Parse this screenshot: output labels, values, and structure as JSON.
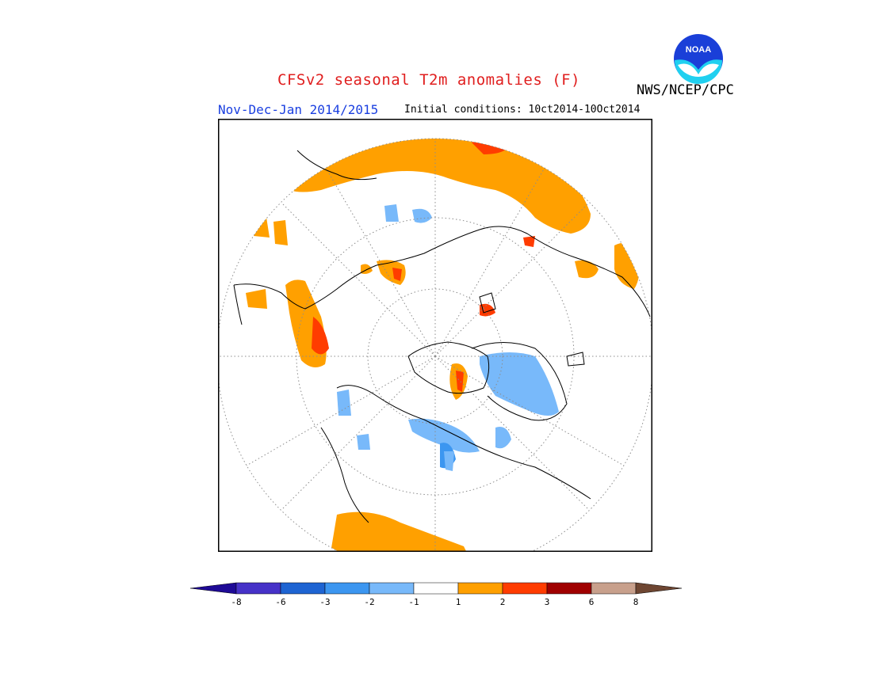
{
  "header": {
    "title": "CFSv2 seasonal T2m anomalies (F)",
    "title_color": "#e01e1e",
    "season": "Nov-Dec-Jan 2014/2015",
    "season_color": "#1a3fe0",
    "initial_conditions": "Initial conditions: 10ct2014-10Oct2014",
    "organization": "NWS/NCEP/CPC",
    "logo_text": "NOAA"
  },
  "map": {
    "projection": "polar-stereographic",
    "legend_placement": "bottom",
    "anomaly_regions": [
      {
        "region": "Northern Eurasia / Siberia",
        "category": "1 to 2"
      },
      {
        "region": "Central Siberia patches",
        "category": "2 to 3"
      },
      {
        "region": "Greenland west coast",
        "category": "2 to 3"
      },
      {
        "region": "Canadian Arctic Archipelago",
        "category": "-2 to -1"
      },
      {
        "region": "Hudson Bay / eastern Canada",
        "category": "-2 to -1"
      },
      {
        "region": "Northern Europe coast",
        "category": "1 to 2"
      },
      {
        "region": "North Pacific (bottom)",
        "category": "1 to 2"
      }
    ]
  },
  "colorbar": {
    "tick_labels": [
      "-8",
      "-6",
      "-3",
      "-2",
      "-1",
      "1",
      "2",
      "3",
      "6",
      "8"
    ],
    "left_arrow_color": "#1e0a96",
    "right_arrow_color": "#6e4632",
    "bins": [
      {
        "color": "#4632c8"
      },
      {
        "color": "#1e64d2"
      },
      {
        "color": "#3c96f0"
      },
      {
        "color": "#78b9fa"
      },
      {
        "color": "#ffffff"
      },
      {
        "color": "#ffa000"
      },
      {
        "color": "#ff3c00"
      },
      {
        "color": "#a00000"
      },
      {
        "color": "#c8a08c"
      }
    ]
  }
}
